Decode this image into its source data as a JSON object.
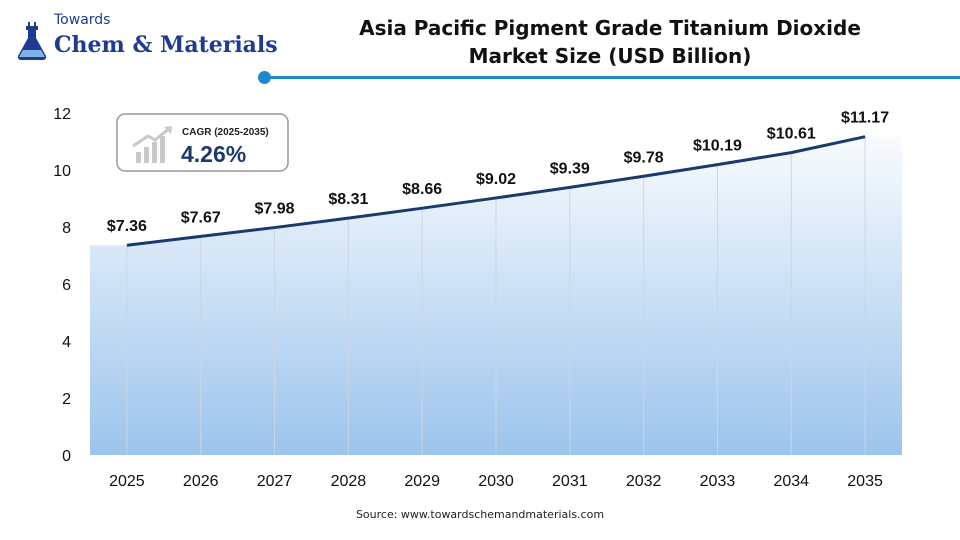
{
  "logo": {
    "line1": "Towards",
    "line2": "Chem & Materials"
  },
  "title_line1": "Asia Pacific Pigment Grade Titanium Dioxide",
  "title_line2": "Market Size (USD Billion)",
  "cagr": {
    "label": "CAGR (2025-2035)",
    "value": "4.26%"
  },
  "source": "Source: www.towardschemandmaterials.com",
  "colors": {
    "line": "#1a3a6e",
    "accent": "#1e88c8",
    "logo": "#1f3a93"
  },
  "chart_data": {
    "type": "area",
    "title": "Asia Pacific Pigment Grade Titanium Dioxide Market Size (USD Billion)",
    "categories": [
      "2025",
      "2026",
      "2027",
      "2028",
      "2029",
      "2030",
      "2031",
      "2032",
      "2033",
      "2034",
      "2035"
    ],
    "values": [
      7.36,
      7.67,
      7.98,
      8.31,
      8.66,
      9.02,
      9.39,
      9.78,
      10.19,
      10.61,
      11.17
    ],
    "data_labels": [
      "$7.36",
      "$7.67",
      "$7.98",
      "$8.31",
      "$8.66",
      "$9.02",
      "$9.39",
      "$9.78",
      "$10.19",
      "$10.61",
      "$11.17"
    ],
    "ylim": [
      0,
      12
    ],
    "yticks": [
      "0",
      "2",
      "4",
      "6",
      "8",
      "10",
      "12"
    ],
    "xlabel": "",
    "ylabel": "",
    "grid": "vertical"
  }
}
